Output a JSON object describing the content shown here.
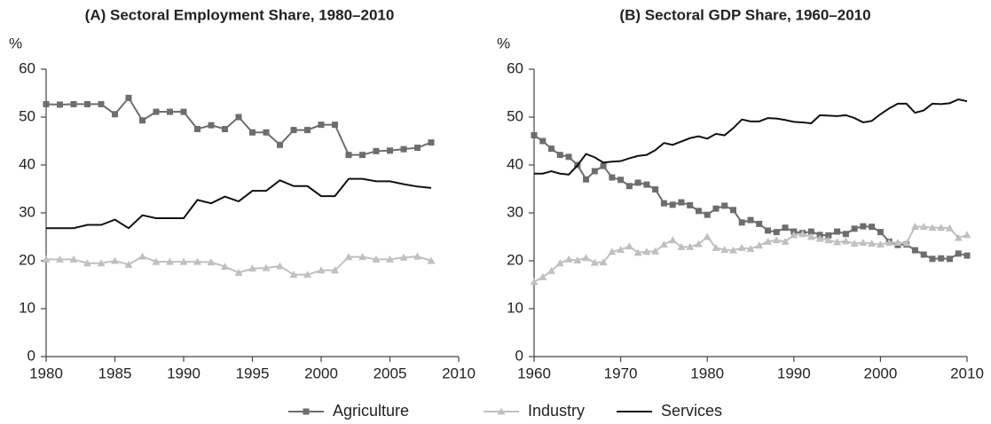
{
  "chart_data": [
    {
      "type": "line",
      "title": "(A) Sectoral Employment  Share, 1980–2010",
      "y_unit": "%",
      "x": [
        1980,
        1981,
        1982,
        1983,
        1984,
        1985,
        1986,
        1987,
        1988,
        1989,
        1990,
        1991,
        1992,
        1993,
        1994,
        1995,
        1996,
        1997,
        1998,
        1999,
        2000,
        2001,
        2002,
        2003,
        2004,
        2005,
        2006,
        2007,
        2008
      ],
      "series": [
        {
          "name": "Agriculture",
          "color": "#6d6d6d",
          "marker": "square",
          "values": [
            52.7,
            52.6,
            52.7,
            52.7,
            52.7,
            50.6,
            54.0,
            49.3,
            51.1,
            51.1,
            51.1,
            47.5,
            48.3,
            47.5,
            50.0,
            46.8,
            46.8,
            44.2,
            47.3,
            47.3,
            48.4,
            48.4,
            42.1,
            42.1,
            42.9,
            43.0,
            43.3,
            43.6,
            44.7
          ]
        },
        {
          "name": "Industry",
          "color": "#c0c0c0",
          "marker": "triangle",
          "values": [
            20.3,
            20.3,
            20.3,
            19.5,
            19.5,
            20.0,
            19.2,
            20.9,
            19.8,
            19.8,
            19.8,
            19.8,
            19.7,
            18.8,
            17.5,
            18.4,
            18.5,
            18.9,
            17.1,
            17.1,
            18.0,
            18.0,
            20.8,
            20.8,
            20.3,
            20.3,
            20.7,
            20.9,
            20.0
          ]
        },
        {
          "name": "Services",
          "color": "#111111",
          "marker": "none",
          "values": [
            26.8,
            26.8,
            26.8,
            27.5,
            27.5,
            28.6,
            26.8,
            29.5,
            28.9,
            28.9,
            28.9,
            32.7,
            32.0,
            33.4,
            32.4,
            34.6,
            34.6,
            36.8,
            35.6,
            35.6,
            33.5,
            33.5,
            37.1,
            37.1,
            36.6,
            36.6,
            36.0,
            35.5,
            35.2
          ]
        }
      ],
      "xlim": [
        1980,
        2010
      ],
      "xticks": [
        1980,
        1985,
        1990,
        1995,
        2000,
        2005,
        2010
      ],
      "ylim": [
        0,
        60
      ],
      "yticks": [
        0,
        10,
        20,
        30,
        40,
        50,
        60
      ]
    },
    {
      "type": "line",
      "title": "(B) Sectoral GDP Share, 1960–2010",
      "y_unit": "%",
      "x": [
        1960,
        1961,
        1962,
        1963,
        1964,
        1965,
        1966,
        1967,
        1968,
        1969,
        1970,
        1971,
        1972,
        1973,
        1974,
        1975,
        1976,
        1977,
        1978,
        1979,
        1980,
        1981,
        1982,
        1983,
        1984,
        1985,
        1986,
        1987,
        1988,
        1989,
        1990,
        1991,
        1992,
        1993,
        1994,
        1995,
        1996,
        1997,
        1998,
        1999,
        2000,
        2001,
        2002,
        2003,
        2004,
        2005,
        2006,
        2007,
        2008,
        2009,
        2010
      ],
      "series": [
        {
          "name": "Agriculture",
          "color": "#6d6d6d",
          "marker": "square",
          "values": [
            46.2,
            45.0,
            43.4,
            42.1,
            41.7,
            40.0,
            37.0,
            38.7,
            39.8,
            37.4,
            36.9,
            35.6,
            36.3,
            35.9,
            34.9,
            32.0,
            31.7,
            32.2,
            31.6,
            30.4,
            29.6,
            30.9,
            31.5,
            30.6,
            28.0,
            28.5,
            27.7,
            26.3,
            26.0,
            26.9,
            26.1,
            25.8,
            26.1,
            25.4,
            25.3,
            26.1,
            25.6,
            26.7,
            27.2,
            27.1,
            26.0,
            24.0,
            23.3,
            23.4,
            22.2,
            21.3,
            20.4,
            20.5,
            20.4,
            21.5,
            21.1
          ]
        },
        {
          "name": "Industry",
          "color": "#c0c0c0",
          "marker": "triangle",
          "values": [
            15.6,
            16.6,
            17.9,
            19.5,
            20.3,
            20.1,
            20.6,
            19.6,
            19.7,
            21.9,
            22.3,
            23.0,
            21.7,
            21.9,
            22.0,
            23.4,
            24.3,
            22.9,
            22.9,
            23.5,
            25.0,
            22.7,
            22.3,
            22.2,
            22.7,
            22.5,
            23.2,
            24.0,
            24.3,
            24.0,
            25.4,
            25.6,
            25.0,
            24.6,
            24.3,
            23.9,
            24.1,
            23.6,
            23.8,
            23.6,
            23.4,
            23.8,
            23.8,
            23.7,
            27.1,
            27.1,
            26.9,
            26.9,
            26.8,
            24.8,
            25.4
          ]
        },
        {
          "name": "Services",
          "color": "#111111",
          "marker": "none",
          "values": [
            38.2,
            38.2,
            38.7,
            38.2,
            38.0,
            39.9,
            42.3,
            41.6,
            40.5,
            40.7,
            40.8,
            41.4,
            41.9,
            42.1,
            43.1,
            44.6,
            44.2,
            44.9,
            45.6,
            46.0,
            45.5,
            46.5,
            46.2,
            47.7,
            49.5,
            49.1,
            49.1,
            49.8,
            49.7,
            49.4,
            49.0,
            48.9,
            48.7,
            50.4,
            50.3,
            50.2,
            50.4,
            49.8,
            48.9,
            49.2,
            50.6,
            51.8,
            52.8,
            52.8,
            50.9,
            51.4,
            52.8,
            52.7,
            52.9,
            53.7,
            53.3
          ]
        }
      ],
      "xlim": [
        1960,
        2010
      ],
      "xticks": [
        1960,
        1970,
        1980,
        1990,
        2000,
        2010
      ],
      "ylim": [
        0,
        60
      ],
      "yticks": [
        0,
        10,
        20,
        30,
        40,
        50,
        60
      ]
    }
  ]
}
